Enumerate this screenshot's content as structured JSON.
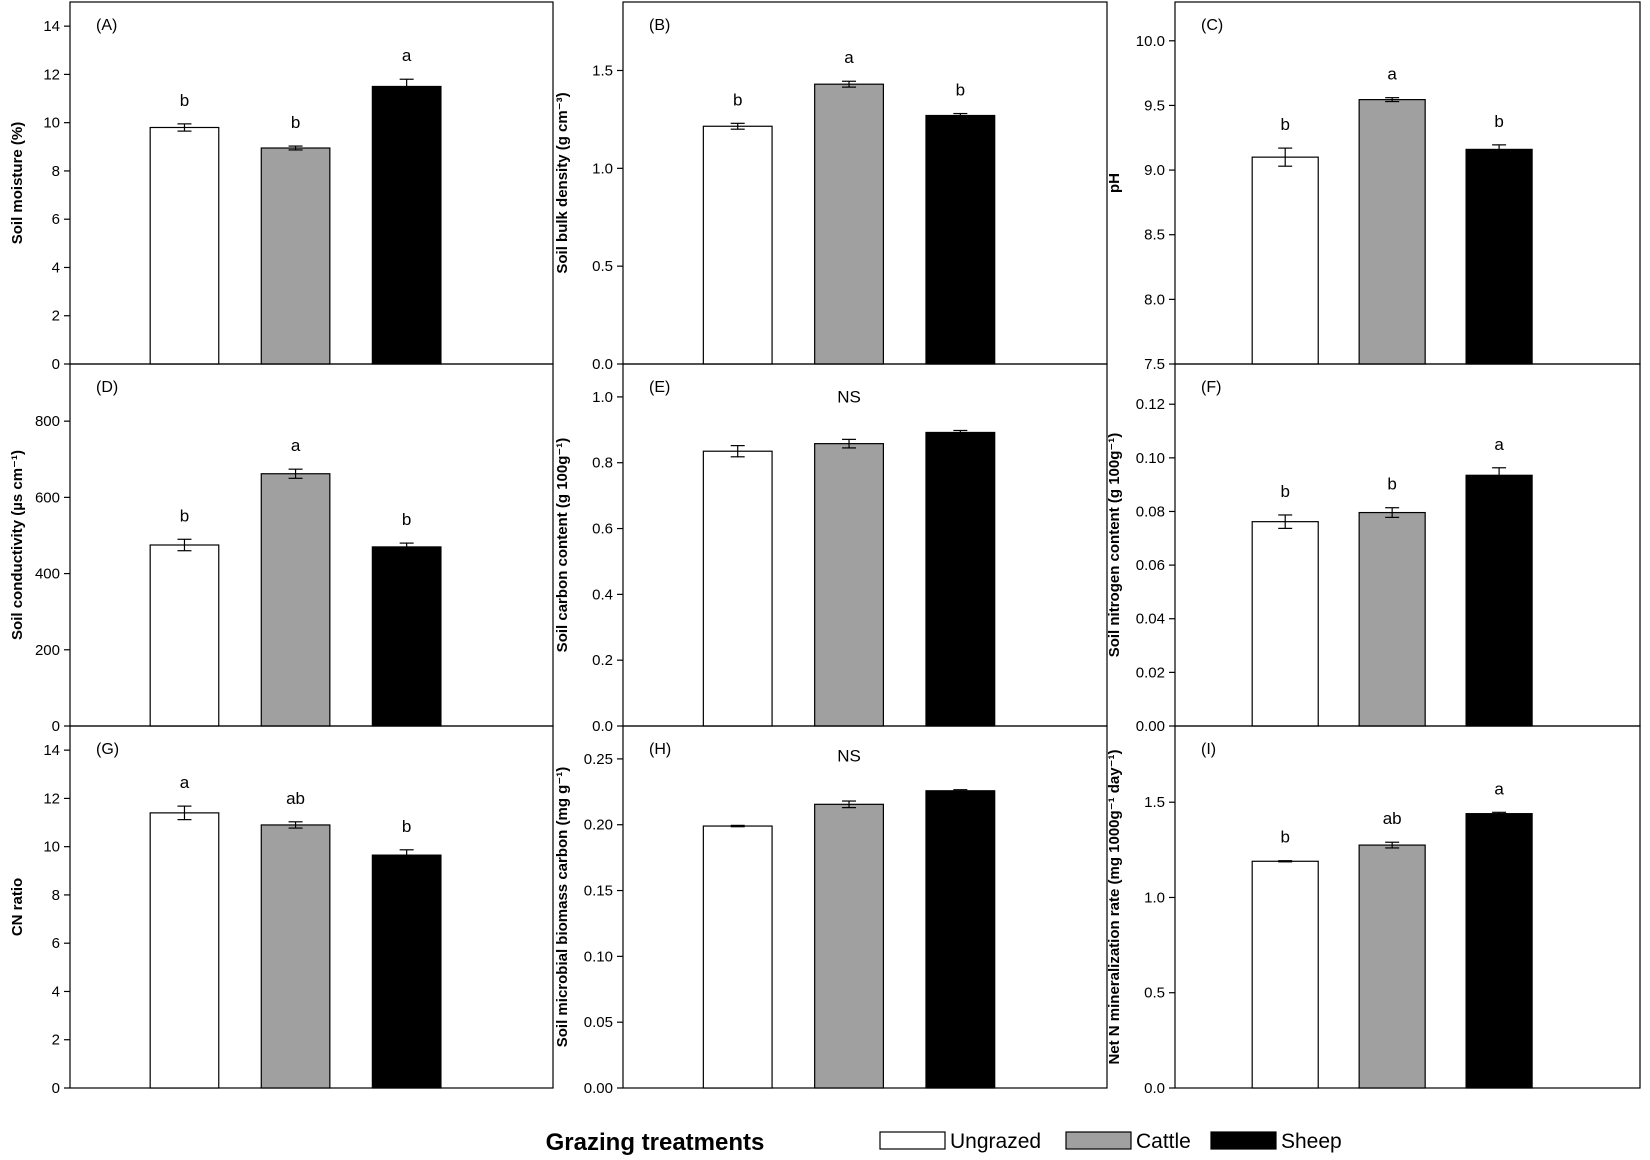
{
  "figure": {
    "x_axis_title": "Grazing treatments",
    "legend": [
      {
        "label": "Ungrazed",
        "color": "#ffffff"
      },
      {
        "label": "Cattle",
        "color": "#a0a0a0"
      },
      {
        "label": "Sheep",
        "color": "#000000"
      }
    ]
  },
  "chart_data": [
    {
      "type": "bar",
      "panel": "(A)",
      "ylabel": "Soil moisture (%)",
      "ylim": [
        0,
        15
      ],
      "yticks": [
        0,
        2,
        4,
        6,
        8,
        10,
        12,
        14
      ],
      "tick_labels": [
        "0",
        "2",
        "4",
        "6",
        "8",
        "10",
        "12",
        "14"
      ],
      "categories": [
        "Ungrazed",
        "Cattle",
        "Sheep"
      ],
      "values": [
        9.8,
        8.95,
        11.5
      ],
      "errors": [
        0.15,
        0.08,
        0.3
      ],
      "letters": [
        "b",
        "b",
        "a"
      ],
      "center_note": ""
    },
    {
      "type": "bar",
      "panel": "(B)",
      "ylabel": "Soil bulk density (g cm⁻³)",
      "ylim": [
        0,
        1.85
      ],
      "yticks": [
        0,
        0.5,
        1.0,
        1.5
      ],
      "tick_labels": [
        "0.0",
        "0.5",
        "1.0",
        "1.5"
      ],
      "categories": [
        "Ungrazed",
        "Cattle",
        "Sheep"
      ],
      "values": [
        1.215,
        1.43,
        1.27
      ],
      "errors": [
        0.015,
        0.015,
        0.01
      ],
      "letters": [
        "b",
        "a",
        "b"
      ],
      "center_note": ""
    },
    {
      "type": "bar",
      "panel": "(C)",
      "ylabel": "pH",
      "ylim": [
        7.5,
        10.3
      ],
      "yticks": [
        7.5,
        8.0,
        8.5,
        9.0,
        9.5,
        10.0
      ],
      "tick_labels": [
        "7.5",
        "8.0",
        "8.5",
        "9.0",
        "9.5",
        "10.0"
      ],
      "categories": [
        "Ungrazed",
        "Cattle",
        "Sheep"
      ],
      "values": [
        9.1,
        9.545,
        9.16
      ],
      "errors": [
        0.07,
        0.015,
        0.035
      ],
      "letters": [
        "b",
        "a",
        "b"
      ],
      "center_note": ""
    },
    {
      "type": "bar",
      "panel": "(D)",
      "ylabel": "Soil conductivity (µs cm⁻¹)",
      "ylim": [
        0,
        950
      ],
      "yticks": [
        0,
        200,
        400,
        600,
        800
      ],
      "tick_labels": [
        "0",
        "200",
        "400",
        "600",
        "800"
      ],
      "categories": [
        "Ungrazed",
        "Cattle",
        "Sheep"
      ],
      "values": [
        475,
        662,
        470
      ],
      "errors": [
        15,
        12,
        10
      ],
      "letters": [
        "b",
        "a",
        "b"
      ],
      "center_note": ""
    },
    {
      "type": "bar",
      "panel": "(E)",
      "ylabel": "Soil carbon content (g 100g⁻¹)",
      "ylim": [
        0,
        1.1
      ],
      "yticks": [
        0,
        0.2,
        0.4,
        0.6,
        0.8,
        1.0
      ],
      "tick_labels": [
        "0.0",
        "0.2",
        "0.4",
        "0.6",
        "0.8",
        "1.0"
      ],
      "categories": [
        "Ungrazed",
        "Cattle",
        "Sheep"
      ],
      "values": [
        0.835,
        0.858,
        0.892
      ],
      "errors": [
        0.017,
        0.013,
        0.006
      ],
      "letters": [
        "",
        "",
        ""
      ],
      "center_note": "NS"
    },
    {
      "type": "bar",
      "panel": "(F)",
      "ylabel": "Soil nitrogen content (g 100g⁻¹)",
      "ylim": [
        0,
        0.135
      ],
      "yticks": [
        0,
        0.02,
        0.04,
        0.06,
        0.08,
        0.1,
        0.12
      ],
      "tick_labels": [
        "0.00",
        "0.02",
        "0.04",
        "0.06",
        "0.08",
        "0.10",
        "0.12"
      ],
      "categories": [
        "Ungrazed",
        "Cattle",
        "Sheep"
      ],
      "values": [
        0.0762,
        0.0796,
        0.0935
      ],
      "errors": [
        0.0025,
        0.0018,
        0.0028
      ],
      "letters": [
        "b",
        "b",
        "a"
      ],
      "center_note": ""
    },
    {
      "type": "bar",
      "panel": "(G)",
      "ylabel": "CN ratio",
      "ylim": [
        0,
        15
      ],
      "yticks": [
        0,
        2,
        4,
        6,
        8,
        10,
        12,
        14
      ],
      "tick_labels": [
        "0",
        "2",
        "4",
        "6",
        "8",
        "10",
        "12",
        "14"
      ],
      "categories": [
        "Ungrazed",
        "Cattle",
        "Sheep"
      ],
      "values": [
        11.4,
        10.9,
        9.65
      ],
      "errors": [
        0.28,
        0.13,
        0.22
      ],
      "letters": [
        "a",
        "ab",
        "b"
      ],
      "center_note": ""
    },
    {
      "type": "bar",
      "panel": "(H)",
      "ylabel": "Soil microbial biomass carbon (mg g⁻¹)",
      "ylim": [
        0,
        0.275
      ],
      "yticks": [
        0,
        0.05,
        0.1,
        0.15,
        0.2,
        0.25
      ],
      "tick_labels": [
        "0.00",
        "0.05",
        "0.10",
        "0.15",
        "0.20",
        "0.25"
      ],
      "categories": [
        "Ungrazed",
        "Cattle",
        "Sheep"
      ],
      "values": [
        0.199,
        0.2155,
        0.2258
      ],
      "errors": [
        0.0005,
        0.0025,
        0.0008
      ],
      "letters": [
        "",
        "",
        ""
      ],
      "center_note": "NS"
    },
    {
      "type": "bar",
      "panel": "(I)",
      "ylabel": "Net N mineralization rate (mg 1000g⁻¹ day⁻¹)",
      "ylim": [
        0,
        1.9
      ],
      "yticks": [
        0,
        0.5,
        1.0,
        1.5
      ],
      "tick_labels": [
        "0.0",
        "0.5",
        "1.0",
        "1.5"
      ],
      "categories": [
        "Ungrazed",
        "Cattle",
        "Sheep"
      ],
      "values": [
        1.19,
        1.275,
        1.44
      ],
      "errors": [
        0.003,
        0.015,
        0.007
      ],
      "letters": [
        "b",
        "ab",
        "a"
      ],
      "center_note": ""
    }
  ]
}
